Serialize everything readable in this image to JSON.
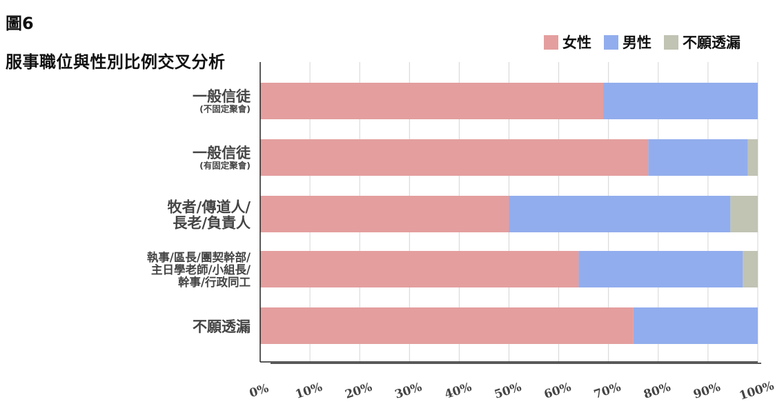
{
  "figure_label": "圖6",
  "chart_data": {
    "type": "bar",
    "orientation": "horizontal",
    "stacked": true,
    "title": "服事職位與性別比例交叉分析",
    "categories": [
      [
        "一般信徒",
        "(不固定聚會)"
      ],
      [
        "一般信徒",
        "(有固定聚會)"
      ],
      [
        "牧者/傳道人/",
        "長老/負責人"
      ],
      [
        "執事/區長/團契幹部/",
        "主日學老師/小組長/",
        "幹事/行政同工"
      ],
      [
        "不願透漏"
      ]
    ],
    "series": [
      {
        "name": "女性",
        "color": "#e49e9e",
        "values": [
          69,
          78,
          50,
          64,
          75
        ]
      },
      {
        "name": "男性",
        "color": "#92aded",
        "values": [
          31,
          20,
          44.5,
          33,
          25
        ]
      },
      {
        "name": "不願透漏",
        "color": "#c1c3b3",
        "values": [
          0,
          2,
          5.5,
          3,
          0
        ]
      }
    ],
    "xlim": [
      0,
      100
    ],
    "x_ticks": [
      "0%",
      "10%",
      "20%",
      "30%",
      "40%",
      "50%",
      "60%",
      "70%",
      "80%",
      "90%",
      "100%"
    ],
    "xlabel": "",
    "ylabel": "",
    "grid": "vertical",
    "legend_position": "top-right"
  }
}
